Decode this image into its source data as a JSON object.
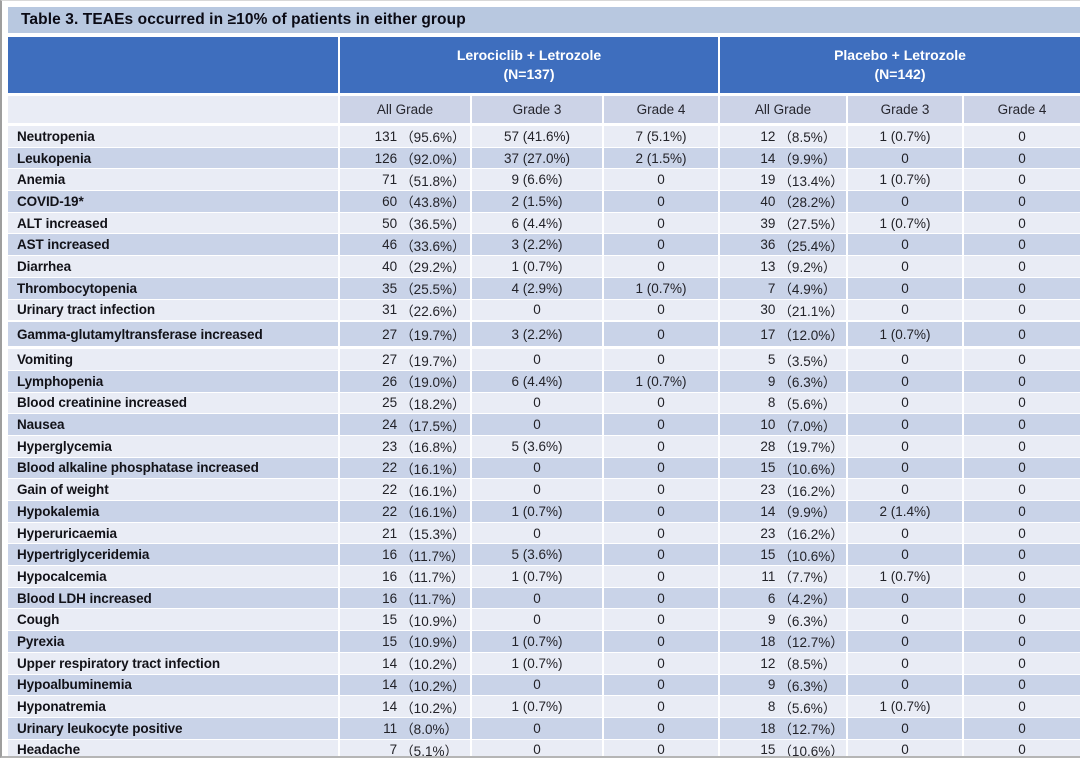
{
  "title": "Table 3. TEAEs occurred in ≥10% of patients in either group",
  "groups": [
    {
      "name": "Lerociclib + Letrozole",
      "n": "(N=137)"
    },
    {
      "name": "Placebo + Letrozole",
      "n": "(N=142)"
    }
  ],
  "grade_headers": [
    "All Grade",
    "Grade 3",
    "Grade 4",
    "All Grade",
    "Grade 3",
    "Grade 4"
  ],
  "colors": {
    "header_blue": "#3e6ebe",
    "title_bar": "#b8c8e0",
    "subheader": "#ccd3e7",
    "row_light": "#e9ecf5",
    "row_dark": "#c9d3e8"
  },
  "rows": [
    {
      "name": "Neutropenia",
      "cells": [
        {
          "n": "131",
          "pct": "（95.6%）"
        },
        "57 (41.6%)",
        "7 (5.1%)",
        {
          "n": "12",
          "pct": "（8.5%）"
        },
        "1 (0.7%)",
        "0"
      ]
    },
    {
      "name": "Leukopenia",
      "cells": [
        {
          "n": "126",
          "pct": "（92.0%）"
        },
        "37 (27.0%)",
        "2 (1.5%)",
        {
          "n": "14",
          "pct": "（9.9%）"
        },
        "0",
        "0"
      ]
    },
    {
      "name": "Anemia",
      "cells": [
        {
          "n": "71",
          "pct": "（51.8%）"
        },
        "9 (6.6%)",
        "0",
        {
          "n": "19",
          "pct": "（13.4%）"
        },
        "1 (0.7%)",
        "0"
      ]
    },
    {
      "name": "COVID-19*",
      "cells": [
        {
          "n": "60",
          "pct": "（43.8%）"
        },
        "2 (1.5%)",
        "0",
        {
          "n": "40",
          "pct": "（28.2%）"
        },
        "0",
        "0"
      ]
    },
    {
      "name": "ALT increased",
      "cells": [
        {
          "n": "50",
          "pct": "（36.5%）"
        },
        "6 (4.4%)",
        "0",
        {
          "n": "39",
          "pct": "（27.5%）"
        },
        "1 (0.7%)",
        "0"
      ]
    },
    {
      "name": "AST increased",
      "cells": [
        {
          "n": "46",
          "pct": "（33.6%）"
        },
        "3 (2.2%)",
        "0",
        {
          "n": "36",
          "pct": "（25.4%）"
        },
        "0",
        "0"
      ]
    },
    {
      "name": "Diarrhea",
      "cells": [
        {
          "n": "40",
          "pct": "（29.2%）"
        },
        "1 (0.7%)",
        "0",
        {
          "n": "13",
          "pct": "（9.2%）"
        },
        "0",
        "0"
      ]
    },
    {
      "name": "Thrombocytopenia",
      "cells": [
        {
          "n": "35",
          "pct": "（25.5%）"
        },
        "4 (2.9%)",
        "1 (0.7%)",
        {
          "n": "7",
          "pct": "（4.9%）"
        },
        "0",
        "0"
      ]
    },
    {
      "name": "Urinary tract infection",
      "cells": [
        {
          "n": "31",
          "pct": "（22.6%）"
        },
        "0",
        "0",
        {
          "n": "30",
          "pct": "（21.1%）"
        },
        "0",
        "0"
      ]
    },
    {
      "name": "Gamma-glutamyltransferase increased",
      "cells": [
        {
          "n": "27",
          "pct": "（19.7%）"
        },
        "3 (2.2%)",
        "0",
        {
          "n": "17",
          "pct": "（12.0%）"
        },
        "1 (0.7%)",
        "0"
      ]
    },
    {
      "name": "Vomiting",
      "cells": [
        {
          "n": "27",
          "pct": "（19.7%）"
        },
        "0",
        "0",
        {
          "n": "5",
          "pct": "（3.5%）"
        },
        "0",
        "0"
      ]
    },
    {
      "name": "Lymphopenia",
      "cells": [
        {
          "n": "26",
          "pct": "（19.0%）"
        },
        "6 (4.4%)",
        "1 (0.7%)",
        {
          "n": "9",
          "pct": "（6.3%）"
        },
        "0",
        "0"
      ]
    },
    {
      "name": "Blood creatinine increased",
      "cells": [
        {
          "n": "25",
          "pct": "（18.2%）"
        },
        "0",
        "0",
        {
          "n": "8",
          "pct": "（5.6%）"
        },
        "0",
        "0"
      ]
    },
    {
      "name": "Nausea",
      "cells": [
        {
          "n": "24",
          "pct": "（17.5%）"
        },
        "0",
        "0",
        {
          "n": "10",
          "pct": "（7.0%）"
        },
        "0",
        "0"
      ]
    },
    {
      "name": "Hyperglycemia",
      "cells": [
        {
          "n": "23",
          "pct": "（16.8%）"
        },
        "5 (3.6%)",
        "0",
        {
          "n": "28",
          "pct": "（19.7%）"
        },
        "0",
        "0"
      ]
    },
    {
      "name": "Blood alkaline phosphatase increased",
      "cells": [
        {
          "n": "22",
          "pct": "（16.1%）"
        },
        "0",
        "0",
        {
          "n": "15",
          "pct": "（10.6%）"
        },
        "0",
        "0"
      ]
    },
    {
      "name": "Gain of weight",
      "cells": [
        {
          "n": "22",
          "pct": "（16.1%）"
        },
        "0",
        "0",
        {
          "n": "23",
          "pct": "（16.2%）"
        },
        "0",
        "0"
      ]
    },
    {
      "name": "Hypokalemia",
      "cells": [
        {
          "n": "22",
          "pct": "（16.1%）"
        },
        "1 (0.7%)",
        "0",
        {
          "n": "14",
          "pct": "（9.9%）"
        },
        "2 (1.4%)",
        "0"
      ]
    },
    {
      "name": "Hyperuricaemia",
      "cells": [
        {
          "n": "21",
          "pct": "（15.3%）"
        },
        "0",
        "0",
        {
          "n": "23",
          "pct": "（16.2%）"
        },
        "0",
        "0"
      ]
    },
    {
      "name": "Hypertriglyceridemia",
      "cells": [
        {
          "n": "16",
          "pct": "（11.7%）"
        },
        "5 (3.6%)",
        "0",
        {
          "n": "15",
          "pct": "（10.6%）"
        },
        "0",
        "0"
      ]
    },
    {
      "name": "Hypocalcemia",
      "cells": [
        {
          "n": "16",
          "pct": "（11.7%）"
        },
        "1 (0.7%)",
        "0",
        {
          "n": "11",
          "pct": "（7.7%）"
        },
        "1 (0.7%)",
        "0"
      ]
    },
    {
      "name": "Blood LDH increased",
      "cells": [
        {
          "n": "16",
          "pct": "（11.7%）"
        },
        "0",
        "0",
        {
          "n": "6",
          "pct": "（4.2%）"
        },
        "0",
        "0"
      ]
    },
    {
      "name": "Cough",
      "cells": [
        {
          "n": "15",
          "pct": "（10.9%）"
        },
        "0",
        "0",
        {
          "n": "9",
          "pct": "（6.3%）"
        },
        "0",
        "0"
      ]
    },
    {
      "name": "Pyrexia",
      "cells": [
        {
          "n": "15",
          "pct": "（10.9%）"
        },
        "1 (0.7%)",
        "0",
        {
          "n": "18",
          "pct": "（12.7%）"
        },
        "0",
        "0"
      ]
    },
    {
      "name": "Upper respiratory tract infection",
      "cells": [
        {
          "n": "14",
          "pct": "（10.2%）"
        },
        "1 (0.7%)",
        "0",
        {
          "n": "12",
          "pct": "（8.5%）"
        },
        "0",
        "0"
      ]
    },
    {
      "name": "Hypoalbuminemia",
      "cells": [
        {
          "n": "14",
          "pct": "（10.2%）"
        },
        "0",
        "0",
        {
          "n": "9",
          "pct": "（6.3%）"
        },
        "0",
        "0"
      ]
    },
    {
      "name": "Hyponatremia",
      "cells": [
        {
          "n": "14",
          "pct": "（10.2%）"
        },
        "1 (0.7%)",
        "0",
        {
          "n": "8",
          "pct": "（5.6%）"
        },
        "1 (0.7%)",
        "0"
      ]
    },
    {
      "name": "Urinary leukocyte positive",
      "cells": [
        {
          "n": "11",
          "pct": "（8.0%）"
        },
        "0",
        "0",
        {
          "n": "18",
          "pct": "（12.7%）"
        },
        "0",
        "0"
      ]
    },
    {
      "name": "Headache",
      "cells": [
        {
          "n": "7",
          "pct": "（5.1%）"
        },
        "0",
        "0",
        {
          "n": "15",
          "pct": "（10.6%）"
        },
        "0",
        "0"
      ]
    }
  ]
}
